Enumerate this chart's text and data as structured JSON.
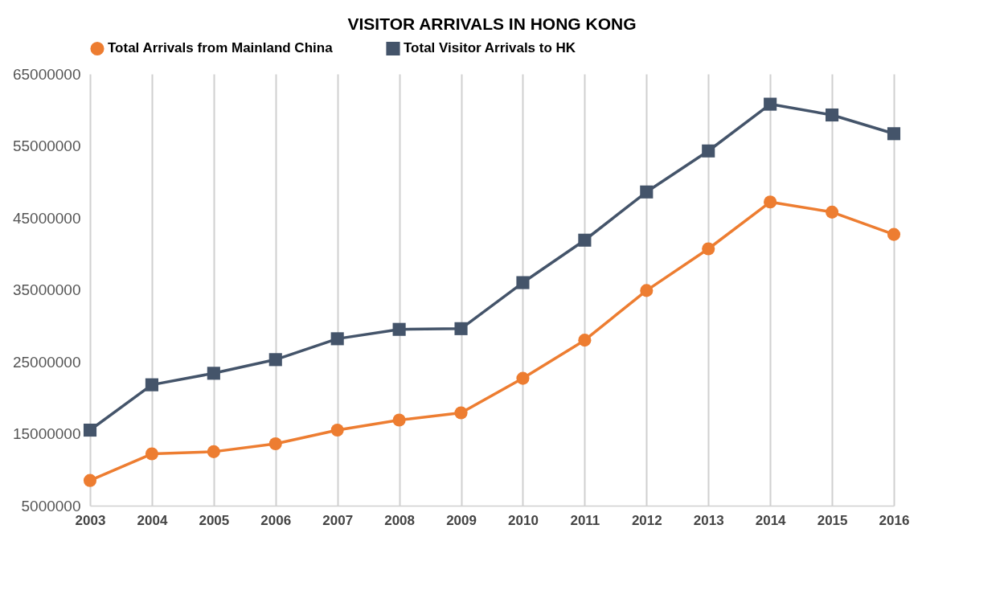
{
  "chart_data": {
    "type": "line",
    "title": "VISITOR ARRIVALS IN HONG KONG",
    "categories": [
      "2003",
      "2004",
      "2005",
      "2006",
      "2007",
      "2008",
      "2009",
      "2010",
      "2011",
      "2012",
      "2013",
      "2014",
      "2015",
      "2016"
    ],
    "series": [
      {
        "name": "Total Arrivals from Mainland China",
        "color": "#ed7d31",
        "marker": "circle",
        "values": [
          8500000,
          12200000,
          12500000,
          13600000,
          15500000,
          16900000,
          17900000,
          22700000,
          28000000,
          34900000,
          40700000,
          47200000,
          45800000,
          42700000
        ]
      },
      {
        "name": "Total Visitor Arrivals to HK",
        "color": "#44546a",
        "marker": "square",
        "values": [
          15500000,
          21800000,
          23400000,
          25300000,
          28200000,
          29500000,
          29600000,
          36000000,
          41900000,
          48600000,
          54300000,
          60800000,
          59300000,
          56700000
        ]
      }
    ],
    "ylim": [
      5000000,
      65000000
    ],
    "yticks": [
      5000000,
      15000000,
      25000000,
      35000000,
      45000000,
      55000000,
      65000000
    ],
    "grid": "x",
    "legend": "top",
    "marker": "circle",
    "line_style": "solid"
  }
}
